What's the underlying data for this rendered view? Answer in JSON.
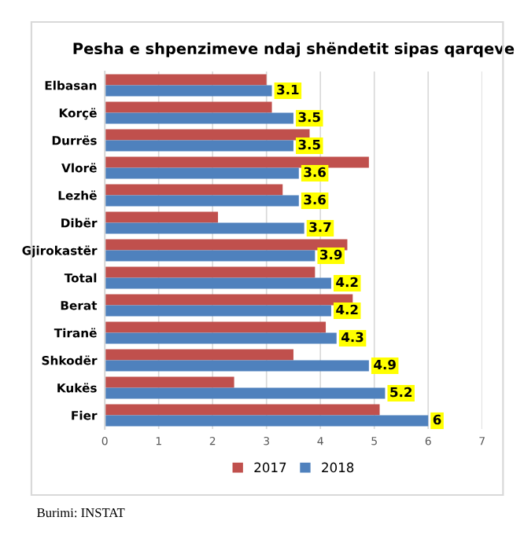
{
  "chart_data": {
    "type": "bar",
    "orientation": "horizontal",
    "title": "Pesha e shpenzimeve ndaj shëndetit sipas qarqeve",
    "categories": [
      "Elbasan",
      "Korçë",
      "Durrës",
      "Vlorë",
      "Lezhë",
      "Dibër",
      "Gjirokastër",
      "Total",
      "Berat",
      "Tiranë",
      "Shkodër",
      "Kukës",
      "Fier"
    ],
    "series": [
      {
        "name": "2017",
        "color": "#c0504d",
        "values": [
          3.0,
          3.1,
          3.8,
          4.9,
          3.3,
          2.1,
          4.5,
          3.9,
          4.6,
          4.1,
          3.5,
          2.4,
          5.1
        ]
      },
      {
        "name": "2018",
        "color": "#4f81bd",
        "values": [
          3.1,
          3.5,
          3.5,
          3.6,
          3.6,
          3.7,
          3.9,
          4.2,
          4.2,
          4.3,
          4.9,
          5.2,
          6
        ],
        "value_labels": [
          "3.1",
          "3.5",
          "3.5",
          "3.6",
          "3.6",
          "3.7",
          "3.9",
          "4.2",
          "4.2",
          "4.3",
          "4.9",
          "5.2",
          "6"
        ]
      }
    ],
    "xlim": [
      0,
      7
    ],
    "xticks": [
      0,
      1,
      2,
      3,
      4,
      5,
      6,
      7
    ],
    "grid": "x",
    "legend": "bottom",
    "annotations": [
      "Burimi: INSTAT"
    ]
  }
}
